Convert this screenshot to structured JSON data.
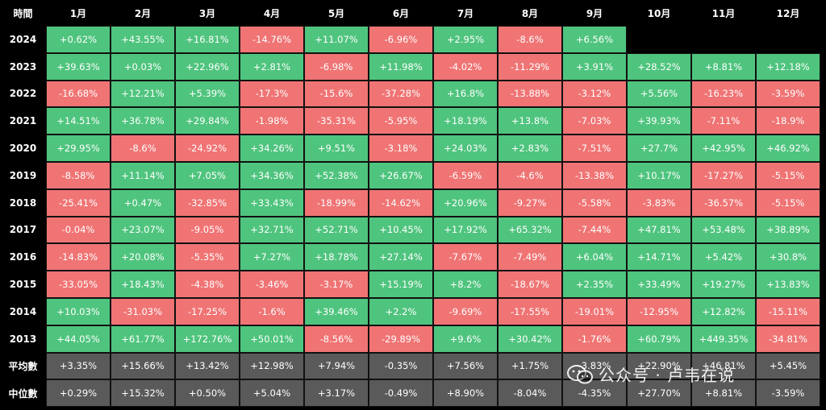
{
  "chart_data": {
    "type": "table",
    "corner_label": "時間",
    "columns": [
      "1月",
      "2月",
      "3月",
      "4月",
      "5月",
      "6月",
      "7月",
      "8月",
      "9月",
      "10月",
      "11月",
      "12月"
    ],
    "rows": [
      {
        "label": "2024",
        "values": [
          "+0.62%",
          "+43.55%",
          "+16.81%",
          "-14.76%",
          "+11.07%",
          "-6.96%",
          "+2.95%",
          "-8.6%",
          "+6.56%",
          null,
          null,
          null
        ]
      },
      {
        "label": "2023",
        "values": [
          "+39.63%",
          "+0.03%",
          "+22.96%",
          "+2.81%",
          "-6.98%",
          "+11.98%",
          "-4.02%",
          "-11.29%",
          "+3.91%",
          "+28.52%",
          "+8.81%",
          "+12.18%"
        ]
      },
      {
        "label": "2022",
        "values": [
          "-16.68%",
          "+12.21%",
          "+5.39%",
          "-17.3%",
          "-15.6%",
          "-37.28%",
          "+16.8%",
          "-13.88%",
          "-3.12%",
          "+5.56%",
          "-16.23%",
          "-3.59%"
        ]
      },
      {
        "label": "2021",
        "values": [
          "+14.51%",
          "+36.78%",
          "+29.84%",
          "-1.98%",
          "-35.31%",
          "-5.95%",
          "+18.19%",
          "+13.8%",
          "-7.03%",
          "+39.93%",
          "-7.11%",
          "-18.9%"
        ]
      },
      {
        "label": "2020",
        "values": [
          "+29.95%",
          "-8.6%",
          "-24.92%",
          "+34.26%",
          "+9.51%",
          "-3.18%",
          "+24.03%",
          "+2.83%",
          "-7.51%",
          "+27.7%",
          "+42.95%",
          "+46.92%"
        ]
      },
      {
        "label": "2019",
        "values": [
          "-8.58%",
          "+11.14%",
          "+7.05%",
          "+34.36%",
          "+52.38%",
          "+26.67%",
          "-6.59%",
          "-4.6%",
          "-13.38%",
          "+10.17%",
          "-17.27%",
          "-5.15%"
        ]
      },
      {
        "label": "2018",
        "values": [
          "-25.41%",
          "+0.47%",
          "-32.85%",
          "+33.43%",
          "-18.99%",
          "-14.62%",
          "+20.96%",
          "-9.27%",
          "-5.58%",
          "-3.83%",
          "-36.57%",
          "-5.15%"
        ]
      },
      {
        "label": "2017",
        "values": [
          "-0.04%",
          "+23.07%",
          "-9.05%",
          "+32.71%",
          "+52.71%",
          "+10.45%",
          "+17.92%",
          "+65.32%",
          "-7.44%",
          "+47.81%",
          "+53.48%",
          "+38.89%"
        ]
      },
      {
        "label": "2016",
        "values": [
          "-14.83%",
          "+20.08%",
          "-5.35%",
          "+7.27%",
          "+18.78%",
          "+27.14%",
          "-7.67%",
          "-7.49%",
          "+6.04%",
          "+14.71%",
          "+5.42%",
          "+30.8%"
        ]
      },
      {
        "label": "2015",
        "values": [
          "-33.05%",
          "+18.43%",
          "-4.38%",
          "-3.46%",
          "-3.17%",
          "+15.19%",
          "+8.2%",
          "-18.67%",
          "+2.35%",
          "+33.49%",
          "+19.27%",
          "+13.83%"
        ]
      },
      {
        "label": "2014",
        "values": [
          "+10.03%",
          "-31.03%",
          "-17.25%",
          "-1.6%",
          "+39.46%",
          "+2.2%",
          "-9.69%",
          "-17.55%",
          "-19.01%",
          "-12.95%",
          "+12.82%",
          "-15.11%"
        ]
      },
      {
        "label": "2013",
        "values": [
          "+44.05%",
          "+61.77%",
          "+172.76%",
          "+50.01%",
          "-8.56%",
          "-29.89%",
          "+9.6%",
          "+30.42%",
          "-1.76%",
          "+60.79%",
          "+449.35%",
          "-34.81%"
        ]
      }
    ],
    "stats": [
      {
        "label": "平均數",
        "values": [
          "+3.35%",
          "+15.66%",
          "+13.42%",
          "+12.98%",
          "+7.94%",
          "-0.35%",
          "+7.56%",
          "+1.75%",
          "-3.83%",
          "+22.90%",
          "+46.81%",
          "+5.45%"
        ]
      },
      {
        "label": "中位數",
        "values": [
          "+0.29%",
          "+15.32%",
          "+0.50%",
          "+5.04%",
          "+3.17%",
          "-0.49%",
          "+8.90%",
          "-8.04%",
          "-4.35%",
          "+27.70%",
          "+8.81%",
          "-3.59%"
        ]
      }
    ],
    "colors": {
      "positive": "#4fc47e",
      "negative": "#f07474",
      "stat": "#5a5a5a",
      "background": "#000000"
    }
  },
  "watermark": {
    "text": "公众号 · 卢韦在说"
  }
}
